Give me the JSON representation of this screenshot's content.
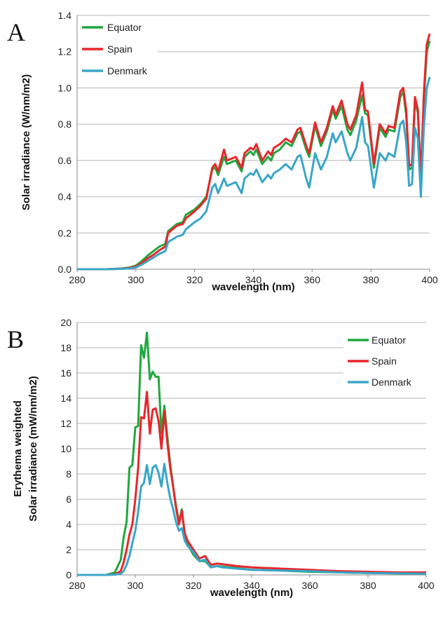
{
  "chart_data": [
    {
      "panel_label": "A",
      "type": "line",
      "xlabel": "wavelength (nm)",
      "ylabel": "Solar irradiance (W/nm/m2)",
      "xlim": [
        280,
        400
      ],
      "ylim": [
        0,
        1.4
      ],
      "xticks": [
        "280",
        "300",
        "320",
        "340",
        "360",
        "380",
        "400"
      ],
      "yticks": [
        "0.0",
        "0.2",
        "0.4",
        "0.6",
        "0.8",
        "1.0",
        "1.2",
        "1.4"
      ],
      "grid": "horizontal",
      "legend_position": "top-left",
      "series": [
        {
          "name": "Equator",
          "color": "#1fa83e",
          "x": [
            280,
            290,
            295,
            298,
            300,
            302,
            304,
            306,
            308,
            310,
            311,
            314,
            316,
            317,
            320,
            322,
            324,
            326,
            327,
            328,
            330,
            331,
            334,
            336,
            337,
            339,
            340,
            341,
            343,
            345,
            346,
            347,
            349,
            351,
            353,
            355,
            356,
            358,
            359,
            361,
            363,
            365,
            367,
            368,
            370,
            372,
            373,
            375,
            377,
            378,
            379,
            381,
            383,
            385,
            386,
            388,
            390,
            391,
            392,
            393,
            394,
            395,
            396,
            397,
            398,
            399,
            400
          ],
          "y": [
            0,
            0,
            0.004,
            0.01,
            0.02,
            0.045,
            0.075,
            0.1,
            0.125,
            0.14,
            0.21,
            0.25,
            0.26,
            0.3,
            0.33,
            0.36,
            0.4,
            0.55,
            0.56,
            0.52,
            0.62,
            0.58,
            0.6,
            0.54,
            0.62,
            0.65,
            0.63,
            0.66,
            0.58,
            0.62,
            0.6,
            0.64,
            0.66,
            0.7,
            0.68,
            0.75,
            0.76,
            0.66,
            0.62,
            0.79,
            0.68,
            0.76,
            0.88,
            0.83,
            0.9,
            0.77,
            0.74,
            0.82,
            0.96,
            0.86,
            0.85,
            0.56,
            0.78,
            0.73,
            0.77,
            0.76,
            0.95,
            0.98,
            0.85,
            0.55,
            0.56,
            0.93,
            0.86,
            0.5,
            0.93,
            1.2,
            1.26
          ]
        },
        {
          "name": "Spain",
          "color": "#e8262b",
          "x": [
            280,
            290,
            295,
            298,
            300,
            302,
            304,
            306,
            308,
            310,
            311,
            314,
            316,
            317,
            320,
            322,
            324,
            326,
            327,
            328,
            330,
            331,
            334,
            336,
            337,
            339,
            340,
            341,
            343,
            345,
            346,
            347,
            349,
            351,
            353,
            355,
            356,
            358,
            359,
            361,
            363,
            365,
            367,
            368,
            370,
            372,
            373,
            375,
            377,
            378,
            379,
            381,
            383,
            385,
            386,
            388,
            390,
            391,
            392,
            393,
            394,
            395,
            396,
            397,
            398,
            399,
            400
          ],
          "y": [
            0,
            0,
            0.003,
            0.008,
            0.015,
            0.035,
            0.06,
            0.08,
            0.105,
            0.125,
            0.2,
            0.24,
            0.25,
            0.28,
            0.32,
            0.35,
            0.39,
            0.56,
            0.58,
            0.54,
            0.66,
            0.6,
            0.62,
            0.56,
            0.64,
            0.67,
            0.66,
            0.69,
            0.6,
            0.65,
            0.63,
            0.67,
            0.69,
            0.72,
            0.7,
            0.77,
            0.78,
            0.68,
            0.64,
            0.81,
            0.7,
            0.78,
            0.9,
            0.85,
            0.93,
            0.8,
            0.77,
            0.85,
            1.03,
            0.88,
            0.87,
            0.58,
            0.8,
            0.75,
            0.79,
            0.78,
            0.98,
            1.0,
            0.88,
            0.57,
            0.58,
            0.95,
            0.88,
            0.5,
            0.96,
            1.24,
            1.3
          ]
        },
        {
          "name": "Denmark",
          "color": "#39a6c8",
          "x": [
            280,
            290,
            295,
            298,
            300,
            302,
            304,
            306,
            308,
            310,
            311,
            314,
            316,
            317,
            320,
            322,
            324,
            326,
            327,
            328,
            330,
            331,
            334,
            336,
            337,
            339,
            340,
            341,
            343,
            345,
            346,
            347,
            349,
            351,
            353,
            355,
            356,
            358,
            359,
            361,
            363,
            365,
            367,
            368,
            370,
            372,
            373,
            375,
            377,
            378,
            379,
            381,
            383,
            385,
            386,
            388,
            390,
            391,
            392,
            393,
            394,
            395,
            396,
            397,
            398,
            399,
            400
          ],
          "y": [
            0,
            0,
            0.002,
            0.005,
            0.01,
            0.025,
            0.045,
            0.065,
            0.085,
            0.1,
            0.15,
            0.18,
            0.19,
            0.22,
            0.26,
            0.28,
            0.32,
            0.45,
            0.47,
            0.42,
            0.5,
            0.46,
            0.48,
            0.42,
            0.5,
            0.53,
            0.52,
            0.55,
            0.48,
            0.52,
            0.5,
            0.53,
            0.55,
            0.58,
            0.55,
            0.62,
            0.63,
            0.5,
            0.45,
            0.64,
            0.55,
            0.62,
            0.75,
            0.7,
            0.76,
            0.64,
            0.6,
            0.67,
            0.84,
            0.7,
            0.68,
            0.45,
            0.64,
            0.6,
            0.64,
            0.62,
            0.8,
            0.82,
            0.7,
            0.46,
            0.47,
            0.78,
            0.72,
            0.4,
            0.78,
            1.0,
            1.06
          ]
        }
      ]
    },
    {
      "panel_label": "B",
      "type": "line",
      "xlabel": "wavelength (nm)",
      "ylabel_lines": [
        "Erythema weighted",
        "Solar irradiance (mW/nm/m2)"
      ],
      "xlim": [
        280,
        400
      ],
      "ylim": [
        0,
        20
      ],
      "xticks": [
        "280",
        "300",
        "320",
        "340",
        "360",
        "380",
        "400"
      ],
      "yticks": [
        "0",
        "2",
        "4",
        "6",
        "8",
        "10",
        "12",
        "14",
        "16",
        "18",
        "20"
      ],
      "grid": "horizontal",
      "legend_position": "top-right",
      "series": [
        {
          "name": "Equator",
          "color": "#1fa83e",
          "x": [
            280,
            290,
            293,
            295,
            296,
            297,
            298,
            299,
            300,
            301,
            302,
            303,
            304,
            305,
            306,
            307,
            308,
            309,
            310,
            311,
            312,
            313,
            314,
            315,
            316,
            317,
            318,
            320,
            322,
            324,
            326,
            328,
            330,
            335,
            340,
            350,
            360,
            370,
            380,
            390,
            400
          ],
          "y": [
            0,
            0,
            0.2,
            1.2,
            3.0,
            4.2,
            8.5,
            8.7,
            11.7,
            11.8,
            18.2,
            17.2,
            19.2,
            15.5,
            16.1,
            15.7,
            15.7,
            11.2,
            13.4,
            11.0,
            8.8,
            7.0,
            5.5,
            4.2,
            5.2,
            3.2,
            2.4,
            1.6,
            1.1,
            1.1,
            0.6,
            0.7,
            0.65,
            0.55,
            0.4,
            0.35,
            0.25,
            0.2,
            0.15,
            0.12,
            0.1
          ]
        },
        {
          "name": "Spain",
          "color": "#e8262b",
          "x": [
            280,
            290,
            293,
            295,
            296,
            297,
            298,
            299,
            300,
            301,
            302,
            303,
            304,
            305,
            306,
            307,
            308,
            309,
            310,
            311,
            312,
            313,
            314,
            315,
            316,
            317,
            318,
            320,
            322,
            324,
            326,
            328,
            330,
            335,
            340,
            350,
            360,
            370,
            380,
            390,
            400
          ],
          "y": [
            0,
            0,
            0.05,
            0.3,
            1.0,
            2.0,
            3.2,
            4.0,
            6.0,
            8.5,
            12.5,
            12.4,
            14.5,
            11.2,
            13.1,
            13.2,
            12.2,
            10.0,
            13.0,
            10.5,
            8.5,
            7.0,
            5.3,
            4.0,
            5.1,
            3.3,
            2.7,
            2.0,
            1.3,
            1.5,
            0.8,
            0.9,
            0.85,
            0.7,
            0.6,
            0.5,
            0.4,
            0.3,
            0.25,
            0.2,
            0.2
          ]
        },
        {
          "name": "Denmark",
          "color": "#39a6c8",
          "x": [
            280,
            290,
            293,
            295,
            296,
            297,
            298,
            299,
            300,
            301,
            302,
            303,
            304,
            305,
            306,
            307,
            308,
            309,
            310,
            311,
            312,
            313,
            314,
            315,
            316,
            317,
            318,
            320,
            322,
            324,
            326,
            328,
            330,
            335,
            340,
            350,
            360,
            370,
            380,
            390,
            400
          ],
          "y": [
            0,
            0,
            0.02,
            0.1,
            0.3,
            0.8,
            1.5,
            2.5,
            3.5,
            5.0,
            7.0,
            7.3,
            8.7,
            7.2,
            8.5,
            8.7,
            8.1,
            7.0,
            8.8,
            7.3,
            6.1,
            5.2,
            4.2,
            3.5,
            3.7,
            2.7,
            2.3,
            1.8,
            1.1,
            1.2,
            0.6,
            0.7,
            0.6,
            0.5,
            0.4,
            0.35,
            0.3,
            0.2,
            0.15,
            0.12,
            0.1
          ]
        }
      ]
    }
  ]
}
